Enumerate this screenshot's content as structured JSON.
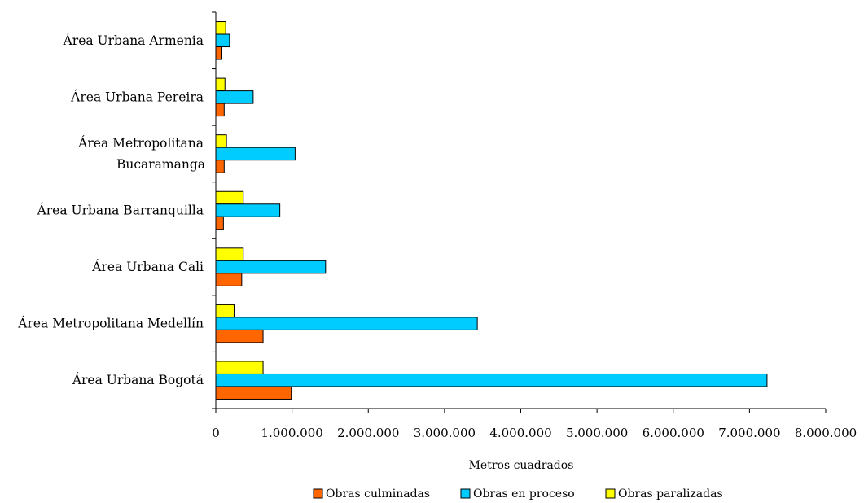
{
  "chart_data": {
    "type": "bar",
    "orientation": "horizontal",
    "categories": [
      "Área Urbana Bogotá",
      "Área Metropolitana Medellín",
      "Área Urbana Cali",
      "Área Urbana Barranquilla",
      "Área Metropolitana Bucaramanga",
      "Área Urbana Pereira",
      "Área Urbana Armenia"
    ],
    "category_lines": [
      [
        "Área Urbana Bogotá"
      ],
      [
        "Área Metropolitana Medellín"
      ],
      [
        "Área Urbana Cali"
      ],
      [
        "Área Urbana Barranquilla"
      ],
      [
        "Área Metropolitana",
        "Bucaramanga"
      ],
      [
        "Área Urbana Pereira"
      ],
      [
        "Área Urbana Armenia"
      ]
    ],
    "series": [
      {
        "name": "Obras culminadas",
        "color": "#FF6600",
        "values": [
          990000,
          620000,
          340000,
          100000,
          110000,
          110000,
          80000
        ]
      },
      {
        "name": "Obras en proceso",
        "color": "#00CCFF",
        "values": [
          7230000,
          3430000,
          1440000,
          840000,
          1040000,
          490000,
          180000
        ]
      },
      {
        "name": "Obras paralizadas",
        "color": "#FFFF00",
        "values": [
          620000,
          240000,
          360000,
          360000,
          140000,
          120000,
          130000
        ]
      }
    ],
    "xlim": [
      0,
      8000000
    ],
    "xticks": [
      0,
      1000000,
      2000000,
      3000000,
      4000000,
      5000000,
      6000000,
      7000000,
      8000000
    ],
    "xtick_labels": [
      "0",
      "1.000.000",
      "2.000.000",
      "3.000.000",
      "4.000.000",
      "5.000.000",
      "6.000.000",
      "7.000.000",
      "8.000.000"
    ],
    "xlabel": "Metros cuadrados",
    "ylabel": "",
    "title": "",
    "legend_position": "bottom",
    "grid": false
  }
}
